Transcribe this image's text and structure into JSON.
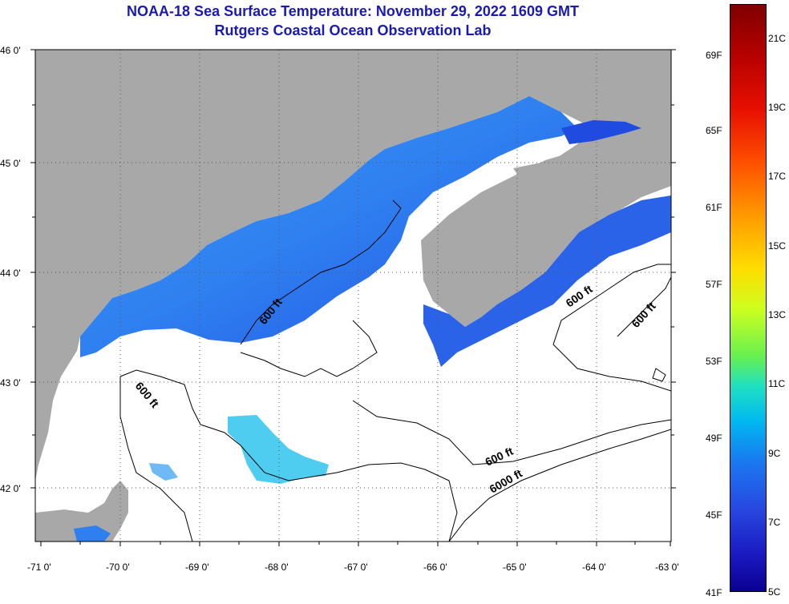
{
  "header": {
    "title_line1": "NOAA-18 Sea Surface Temperature:  November 29, 2022 1609 GMT",
    "title_line2": "Rutgers Coastal Ocean Observation Lab"
  },
  "map": {
    "lat_labels": [
      "46 0'",
      "45 0'",
      "44 0'",
      "43 0'",
      "42 0'"
    ],
    "lon_labels": [
      "-71 0'",
      "-70 0'",
      "-69 0'",
      "-68 0'",
      "-67 0'",
      "-66 0'",
      "-65 0'",
      "-64 0'",
      "-63 0'"
    ],
    "contour_labels": [
      "600 ft",
      "600 ft",
      "600 ft",
      "600 ft",
      "600 ft",
      "6000 ft"
    ],
    "colors": {
      "land": "#a8a8a8",
      "cloud": "#ffffff",
      "water_blue": "#2a6af0",
      "water_cyan": "#3cc8f0"
    }
  },
  "colorbar": {
    "fahrenheit": [
      "69F",
      "65F",
      "61F",
      "57F",
      "53F",
      "49F",
      "45F",
      "41F"
    ],
    "celsius": [
      "21C",
      "19C",
      "17C",
      "15C",
      "13C",
      "11C",
      "9C",
      "7C",
      "5C"
    ]
  }
}
